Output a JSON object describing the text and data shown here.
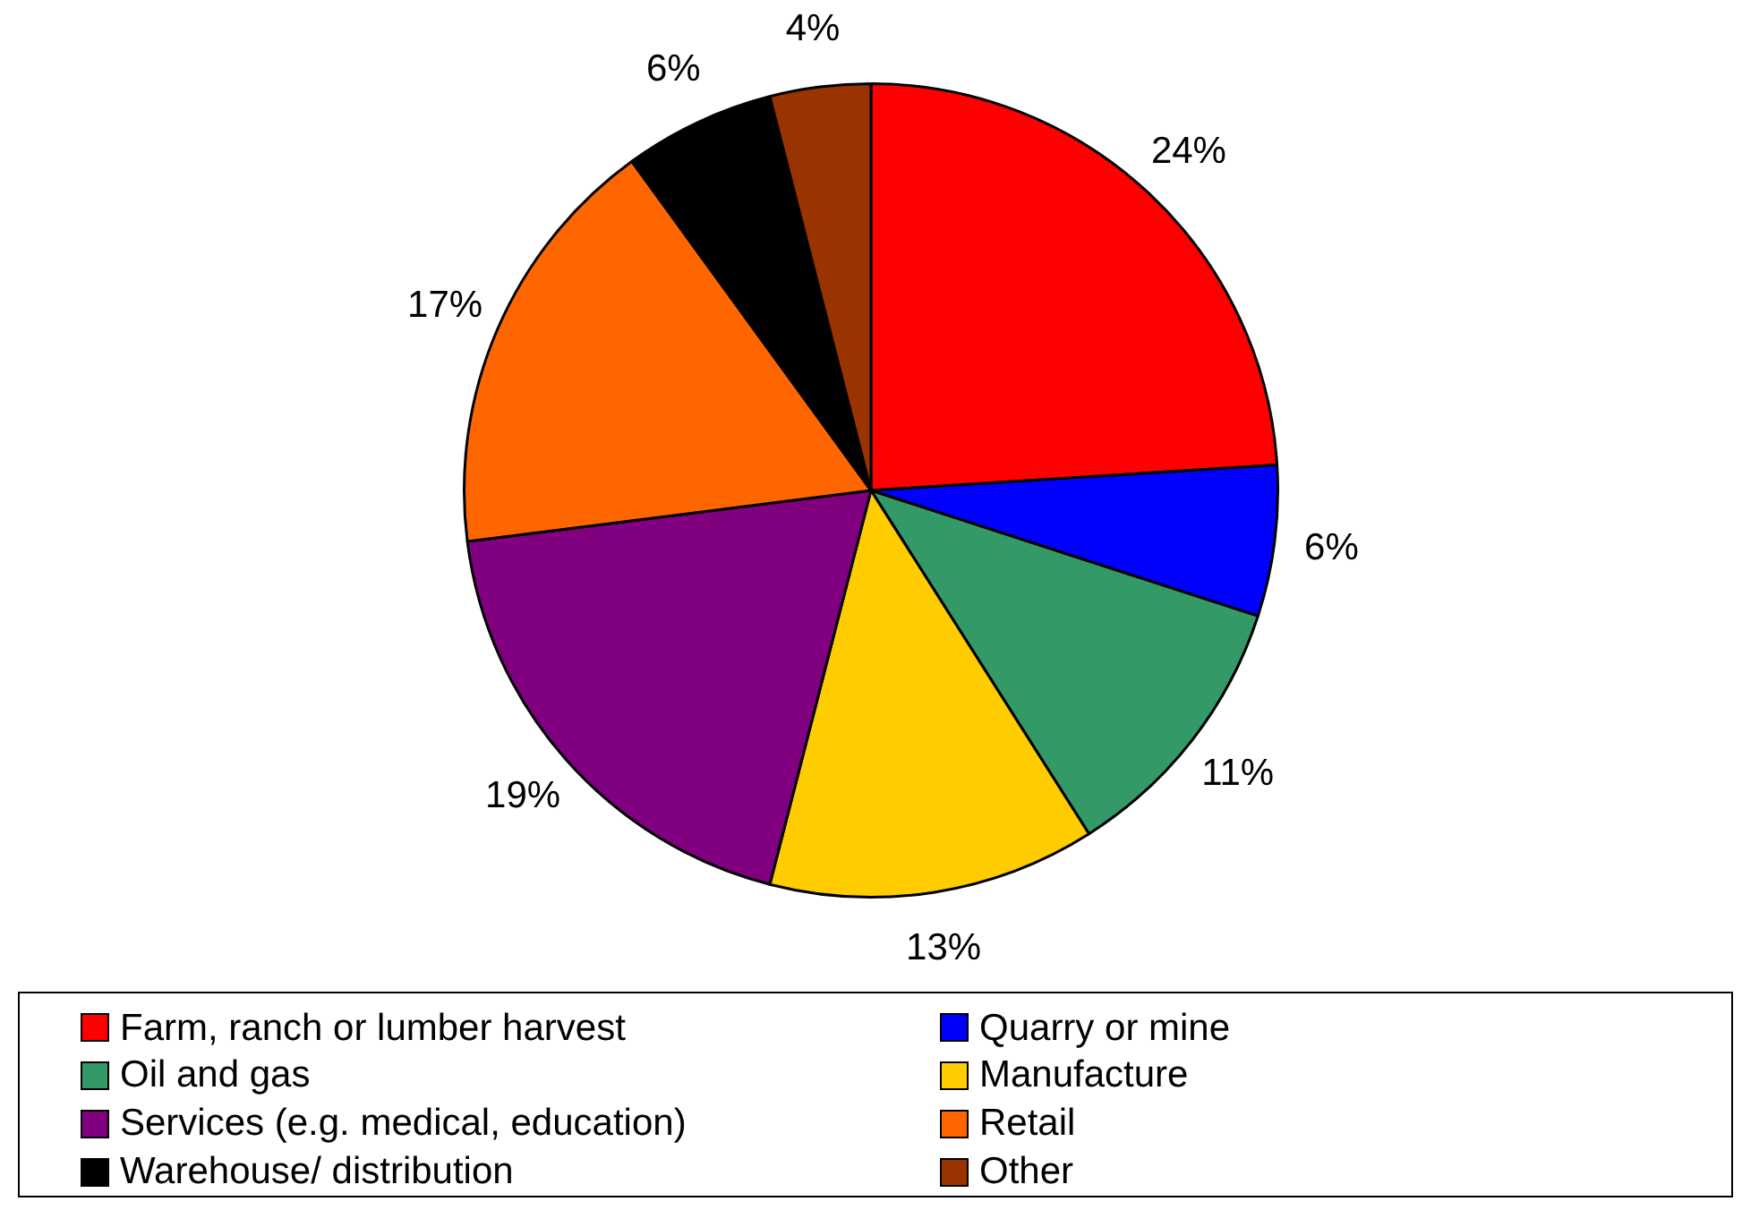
{
  "chart_data": {
    "type": "pie",
    "categories": [
      "Farm, ranch or lumber harvest",
      "Quarry or mine",
      "Oil and gas",
      "Manufacture",
      "Services (e.g. medical, education)",
      "Retail",
      "Warehouse/ distribution",
      "Other"
    ],
    "values": [
      24,
      6,
      11,
      13,
      19,
      17,
      6,
      4
    ],
    "colors": [
      "#ff0000",
      "#0000ff",
      "#339966",
      "#ffcc00",
      "#800080",
      "#ff6600",
      "#000000",
      "#993300"
    ],
    "value_labels": [
      "24%",
      "6%",
      "11%",
      "13%",
      "19%",
      "17%",
      "6%",
      "4%"
    ],
    "legend": "bottom"
  }
}
